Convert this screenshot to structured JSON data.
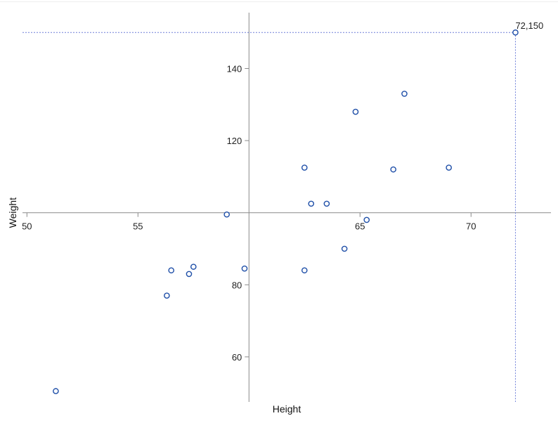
{
  "chart_data": {
    "type": "scatter",
    "xlabel": "Height",
    "ylabel": "Weight",
    "xlim": [
      49.8,
      73.6
    ],
    "ylim": [
      47.5,
      155.5
    ],
    "xticks": [
      50,
      55,
      65,
      70
    ],
    "yticks": [
      60,
      80,
      120,
      140
    ],
    "x_axis_crosses_y_at": 100,
    "y_axis_crosses_x_at": 60,
    "grid": false,
    "marker_color": "#1f4fa8",
    "reference_color": "#6f7fd8",
    "points": [
      {
        "x": 51.3,
        "y": 50.5
      },
      {
        "x": 56.3,
        "y": 77
      },
      {
        "x": 56.5,
        "y": 84
      },
      {
        "x": 57.3,
        "y": 83
      },
      {
        "x": 57.5,
        "y": 85
      },
      {
        "x": 59.0,
        "y": 99.5
      },
      {
        "x": 59.8,
        "y": 84.5
      },
      {
        "x": 62.5,
        "y": 112.5
      },
      {
        "x": 62.5,
        "y": 84
      },
      {
        "x": 62.8,
        "y": 102.5
      },
      {
        "x": 63.5,
        "y": 102.5
      },
      {
        "x": 64.3,
        "y": 90
      },
      {
        "x": 64.8,
        "y": 128
      },
      {
        "x": 65.3,
        "y": 98
      },
      {
        "x": 66.5,
        "y": 112
      },
      {
        "x": 67.0,
        "y": 133
      },
      {
        "x": 69.0,
        "y": 112.5
      },
      {
        "x": 72.0,
        "y": 150
      }
    ],
    "highlight": {
      "x": 72,
      "y": 150,
      "label": "72,150"
    }
  }
}
